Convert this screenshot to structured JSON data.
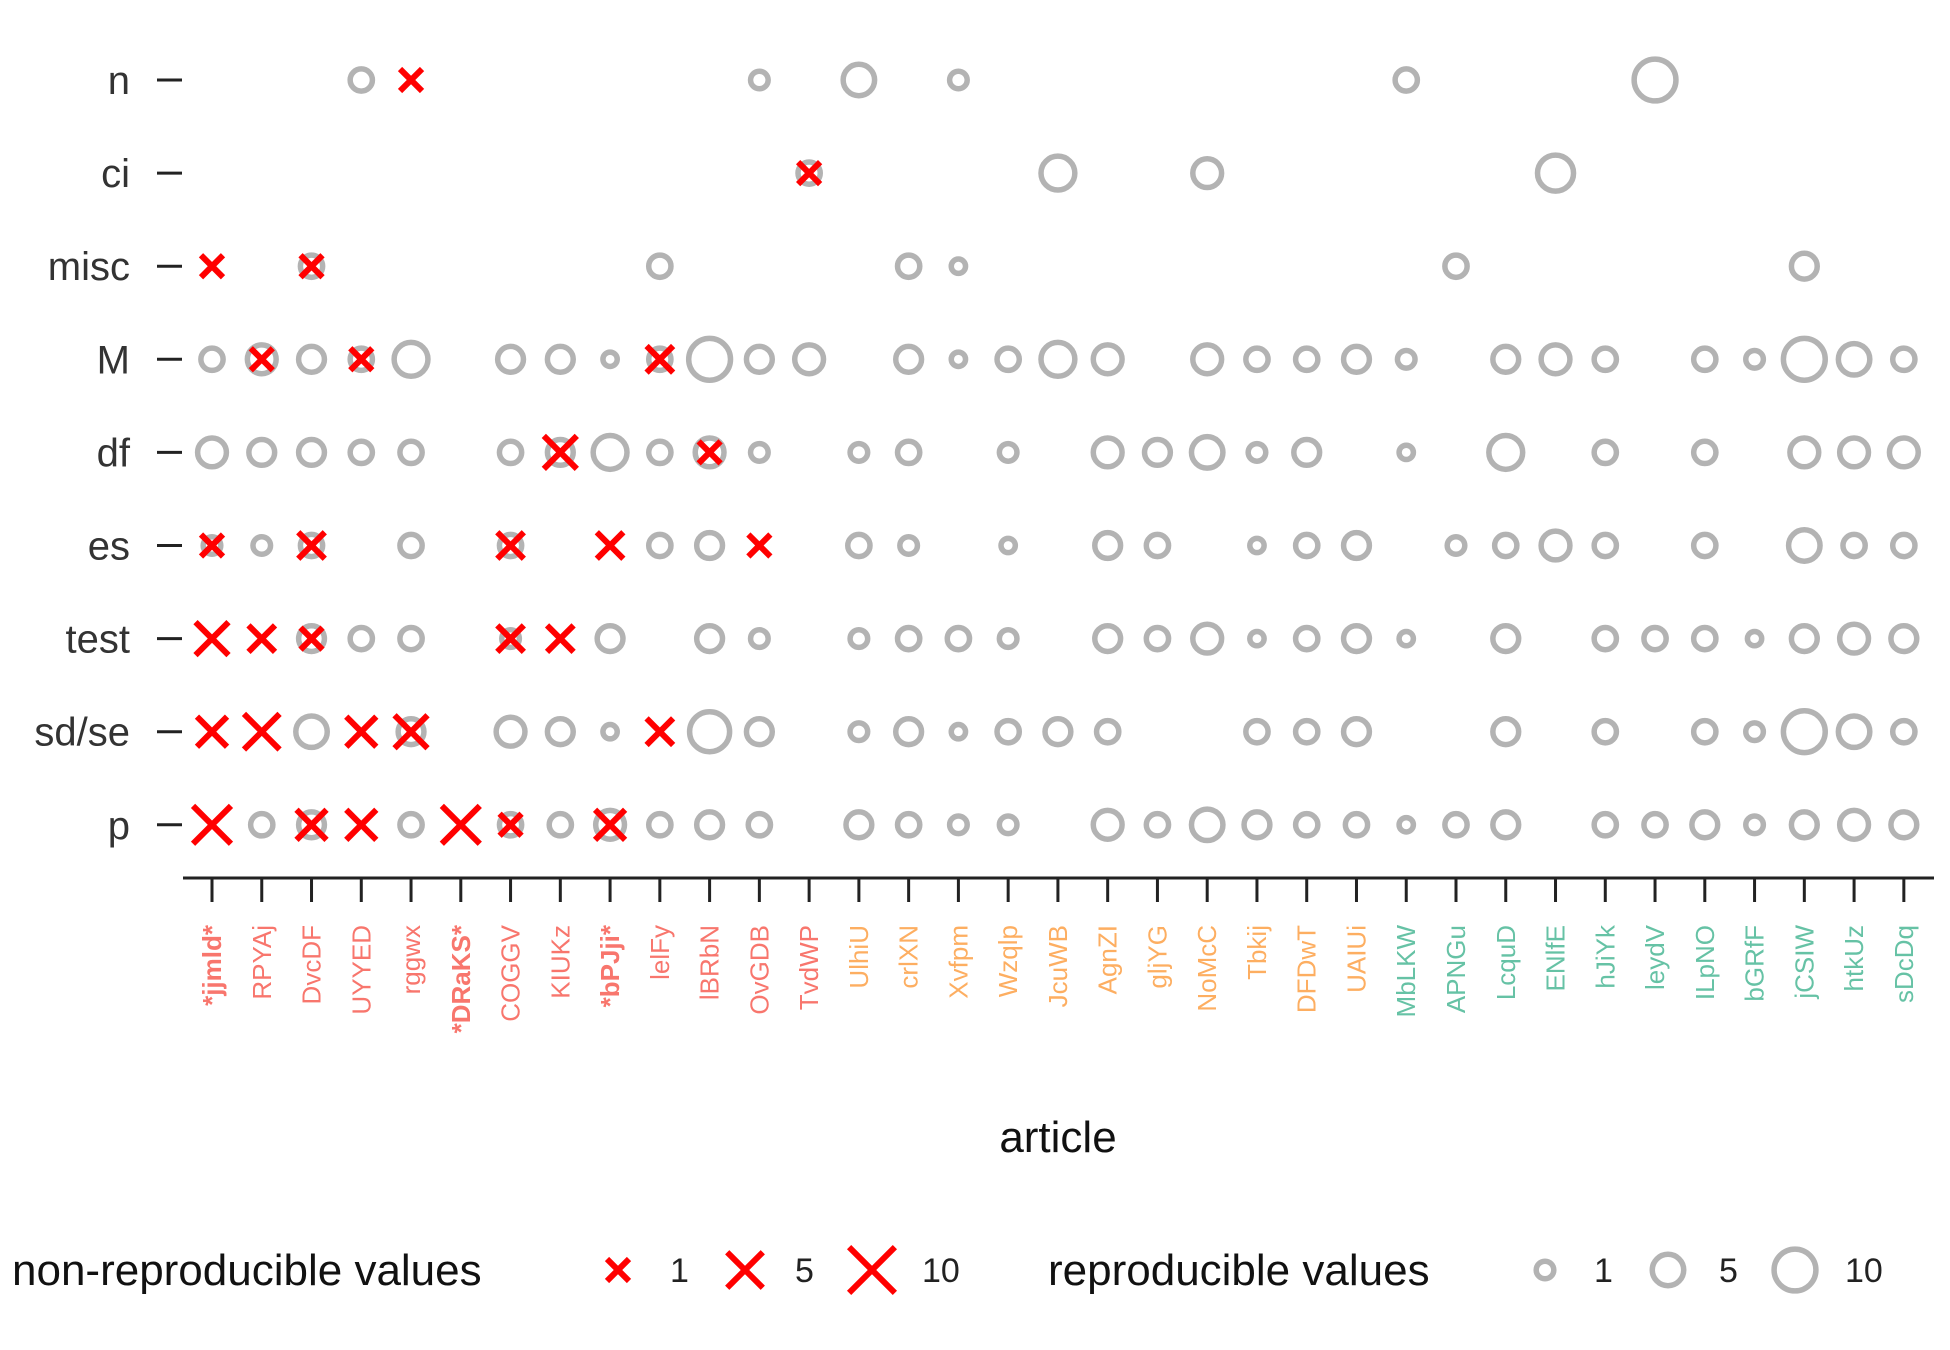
{
  "chart_data": {
    "type": "scatter",
    "xlabel": "article",
    "y_categories": [
      "n",
      "ci",
      "misc",
      "M",
      "df",
      "es",
      "test",
      "sd/se",
      "p"
    ],
    "articles": [
      {
        "label": "*jjmld*",
        "group": "red",
        "bold": true
      },
      {
        "label": "RPYAj",
        "group": "red",
        "bold": false
      },
      {
        "label": "DvcDF",
        "group": "red",
        "bold": false
      },
      {
        "label": "UYYED",
        "group": "red",
        "bold": false
      },
      {
        "label": "rggwx",
        "group": "red",
        "bold": false
      },
      {
        "label": "*DRaKS*",
        "group": "red",
        "bold": true
      },
      {
        "label": "COGGV",
        "group": "red",
        "bold": false
      },
      {
        "label": "KIUKz",
        "group": "red",
        "bold": false
      },
      {
        "label": "*bPJji*",
        "group": "red",
        "bold": true
      },
      {
        "label": "lelFy",
        "group": "red",
        "bold": false
      },
      {
        "label": "lBRbN",
        "group": "red",
        "bold": false
      },
      {
        "label": "OvGDB",
        "group": "red",
        "bold": false
      },
      {
        "label": "TvdWP",
        "group": "red",
        "bold": false
      },
      {
        "label": "UlhiU",
        "group": "orange",
        "bold": false
      },
      {
        "label": "crlXN",
        "group": "orange",
        "bold": false
      },
      {
        "label": "Xvfpm",
        "group": "orange",
        "bold": false
      },
      {
        "label": "Wzqlp",
        "group": "orange",
        "bold": false
      },
      {
        "label": "JcuWB",
        "group": "orange",
        "bold": false
      },
      {
        "label": "AgnZI",
        "group": "orange",
        "bold": false
      },
      {
        "label": "gljYG",
        "group": "orange",
        "bold": false
      },
      {
        "label": "NoMcC",
        "group": "orange",
        "bold": false
      },
      {
        "label": "Tbkij",
        "group": "orange",
        "bold": false
      },
      {
        "label": "DFDwT",
        "group": "orange",
        "bold": false
      },
      {
        "label": "UAIUi",
        "group": "orange",
        "bold": false
      },
      {
        "label": "MbLKW",
        "group": "teal",
        "bold": false
      },
      {
        "label": "APNGu",
        "group": "teal",
        "bold": false
      },
      {
        "label": "LcquD",
        "group": "teal",
        "bold": false
      },
      {
        "label": "ENlfE",
        "group": "teal",
        "bold": false
      },
      {
        "label": "hJiYk",
        "group": "teal",
        "bold": false
      },
      {
        "label": "leydV",
        "group": "teal",
        "bold": false
      },
      {
        "label": "ILpNO",
        "group": "teal",
        "bold": false
      },
      {
        "label": "bGRfF",
        "group": "teal",
        "bold": false
      },
      {
        "label": "jCSIW",
        "group": "teal",
        "bold": false
      },
      {
        "label": "htkUz",
        "group": "teal",
        "bold": false
      },
      {
        "label": "sDcDq",
        "group": "teal",
        "bold": false
      }
    ],
    "reproducible_values": [
      {
        "x": 3,
        "y": "n",
        "count": 2
      },
      {
        "x": 11,
        "y": "n",
        "count": 1
      },
      {
        "x": 13,
        "y": "n",
        "count": 5
      },
      {
        "x": 15,
        "y": "n",
        "count": 1
      },
      {
        "x": 24,
        "y": "n",
        "count": 2
      },
      {
        "x": 29,
        "y": "n",
        "count": 10
      },
      {
        "x": 12,
        "y": "ci",
        "count": 2
      },
      {
        "x": 17,
        "y": "ci",
        "count": 6
      },
      {
        "x": 20,
        "y": "ci",
        "count": 4
      },
      {
        "x": 27,
        "y": "ci",
        "count": 7
      },
      {
        "x": 2,
        "y": "misc",
        "count": 2
      },
      {
        "x": 9,
        "y": "misc",
        "count": 2
      },
      {
        "x": 14,
        "y": "misc",
        "count": 2
      },
      {
        "x": 15,
        "y": "misc",
        "count": 0.5
      },
      {
        "x": 25,
        "y": "misc",
        "count": 2
      },
      {
        "x": 32,
        "y": "misc",
        "count": 3
      },
      {
        "x": 0,
        "y": "M",
        "count": 2
      },
      {
        "x": 1,
        "y": "M",
        "count": 4
      },
      {
        "x": 2,
        "y": "M",
        "count": 3
      },
      {
        "x": 3,
        "y": "M",
        "count": 2
      },
      {
        "x": 4,
        "y": "M",
        "count": 6
      },
      {
        "x": 6,
        "y": "M",
        "count": 3
      },
      {
        "x": 7,
        "y": "M",
        "count": 3
      },
      {
        "x": 8,
        "y": "M",
        "count": 0.5
      },
      {
        "x": 9,
        "y": "M",
        "count": 2
      },
      {
        "x": 10,
        "y": "M",
        "count": 10
      },
      {
        "x": 11,
        "y": "M",
        "count": 3
      },
      {
        "x": 12,
        "y": "M",
        "count": 4
      },
      {
        "x": 14,
        "y": "M",
        "count": 3
      },
      {
        "x": 15,
        "y": "M",
        "count": 0.5
      },
      {
        "x": 16,
        "y": "M",
        "count": 2
      },
      {
        "x": 17,
        "y": "M",
        "count": 6
      },
      {
        "x": 18,
        "y": "M",
        "count": 4
      },
      {
        "x": 20,
        "y": "M",
        "count": 4
      },
      {
        "x": 21,
        "y": "M",
        "count": 2
      },
      {
        "x": 22,
        "y": "M",
        "count": 2
      },
      {
        "x": 23,
        "y": "M",
        "count": 3
      },
      {
        "x": 24,
        "y": "M",
        "count": 1
      },
      {
        "x": 26,
        "y": "M",
        "count": 3
      },
      {
        "x": 27,
        "y": "M",
        "count": 4
      },
      {
        "x": 28,
        "y": "M",
        "count": 2
      },
      {
        "x": 30,
        "y": "M",
        "count": 2
      },
      {
        "x": 31,
        "y": "M",
        "count": 1
      },
      {
        "x": 32,
        "y": "M",
        "count": 10
      },
      {
        "x": 33,
        "y": "M",
        "count": 5
      },
      {
        "x": 34,
        "y": "M",
        "count": 2
      },
      {
        "x": 0,
        "y": "df",
        "count": 4
      },
      {
        "x": 1,
        "y": "df",
        "count": 3
      },
      {
        "x": 2,
        "y": "df",
        "count": 3
      },
      {
        "x": 3,
        "y": "df",
        "count": 2
      },
      {
        "x": 4,
        "y": "df",
        "count": 2
      },
      {
        "x": 6,
        "y": "df",
        "count": 2
      },
      {
        "x": 7,
        "y": "df",
        "count": 3
      },
      {
        "x": 8,
        "y": "df",
        "count": 6
      },
      {
        "x": 9,
        "y": "df",
        "count": 2
      },
      {
        "x": 10,
        "y": "df",
        "count": 4
      },
      {
        "x": 11,
        "y": "df",
        "count": 1
      },
      {
        "x": 13,
        "y": "df",
        "count": 1
      },
      {
        "x": 14,
        "y": "df",
        "count": 2
      },
      {
        "x": 16,
        "y": "df",
        "count": 1
      },
      {
        "x": 18,
        "y": "df",
        "count": 4
      },
      {
        "x": 19,
        "y": "df",
        "count": 3
      },
      {
        "x": 20,
        "y": "df",
        "count": 5
      },
      {
        "x": 21,
        "y": "df",
        "count": 1
      },
      {
        "x": 22,
        "y": "df",
        "count": 3
      },
      {
        "x": 24,
        "y": "df",
        "count": 0.5
      },
      {
        "x": 26,
        "y": "df",
        "count": 6
      },
      {
        "x": 28,
        "y": "df",
        "count": 2
      },
      {
        "x": 30,
        "y": "df",
        "count": 2
      },
      {
        "x": 32,
        "y": "df",
        "count": 4
      },
      {
        "x": 33,
        "y": "df",
        "count": 4
      },
      {
        "x": 34,
        "y": "df",
        "count": 4
      },
      {
        "x": 0,
        "y": "es",
        "count": 1
      },
      {
        "x": 1,
        "y": "es",
        "count": 1
      },
      {
        "x": 2,
        "y": "es",
        "count": 2
      },
      {
        "x": 4,
        "y": "es",
        "count": 2
      },
      {
        "x": 6,
        "y": "es",
        "count": 2
      },
      {
        "x": 9,
        "y": "es",
        "count": 2
      },
      {
        "x": 10,
        "y": "es",
        "count": 3
      },
      {
        "x": 13,
        "y": "es",
        "count": 2
      },
      {
        "x": 14,
        "y": "es",
        "count": 1
      },
      {
        "x": 16,
        "y": "es",
        "count": 0.5
      },
      {
        "x": 18,
        "y": "es",
        "count": 3
      },
      {
        "x": 19,
        "y": "es",
        "count": 2
      },
      {
        "x": 21,
        "y": "es",
        "count": 0.5
      },
      {
        "x": 22,
        "y": "es",
        "count": 2
      },
      {
        "x": 23,
        "y": "es",
        "count": 3
      },
      {
        "x": 25,
        "y": "es",
        "count": 1
      },
      {
        "x": 26,
        "y": "es",
        "count": 2
      },
      {
        "x": 27,
        "y": "es",
        "count": 4
      },
      {
        "x": 28,
        "y": "es",
        "count": 2
      },
      {
        "x": 30,
        "y": "es",
        "count": 2
      },
      {
        "x": 32,
        "y": "es",
        "count": 5
      },
      {
        "x": 33,
        "y": "es",
        "count": 2
      },
      {
        "x": 34,
        "y": "es",
        "count": 2
      },
      {
        "x": 2,
        "y": "test",
        "count": 3
      },
      {
        "x": 3,
        "y": "test",
        "count": 2
      },
      {
        "x": 4,
        "y": "test",
        "count": 2
      },
      {
        "x": 6,
        "y": "test",
        "count": 1
      },
      {
        "x": 8,
        "y": "test",
        "count": 3
      },
      {
        "x": 10,
        "y": "test",
        "count": 3
      },
      {
        "x": 11,
        "y": "test",
        "count": 1
      },
      {
        "x": 13,
        "y": "test",
        "count": 1
      },
      {
        "x": 14,
        "y": "test",
        "count": 2
      },
      {
        "x": 15,
        "y": "test",
        "count": 2
      },
      {
        "x": 16,
        "y": "test",
        "count": 1
      },
      {
        "x": 18,
        "y": "test",
        "count": 3
      },
      {
        "x": 19,
        "y": "test",
        "count": 2
      },
      {
        "x": 20,
        "y": "test",
        "count": 4
      },
      {
        "x": 21,
        "y": "test",
        "count": 0.5
      },
      {
        "x": 22,
        "y": "test",
        "count": 2
      },
      {
        "x": 23,
        "y": "test",
        "count": 3
      },
      {
        "x": 24,
        "y": "test",
        "count": 0.5
      },
      {
        "x": 26,
        "y": "test",
        "count": 3
      },
      {
        "x": 28,
        "y": "test",
        "count": 2
      },
      {
        "x": 29,
        "y": "test",
        "count": 2
      },
      {
        "x": 30,
        "y": "test",
        "count": 2
      },
      {
        "x": 31,
        "y": "test",
        "count": 0.5
      },
      {
        "x": 32,
        "y": "test",
        "count": 3
      },
      {
        "x": 33,
        "y": "test",
        "count": 4
      },
      {
        "x": 34,
        "y": "test",
        "count": 3
      },
      {
        "x": 2,
        "y": "sd/se",
        "count": 5
      },
      {
        "x": 4,
        "y": "sd/se",
        "count": 3
      },
      {
        "x": 6,
        "y": "sd/se",
        "count": 4
      },
      {
        "x": 7,
        "y": "sd/se",
        "count": 3
      },
      {
        "x": 8,
        "y": "sd/se",
        "count": 0.5
      },
      {
        "x": 10,
        "y": "sd/se",
        "count": 9
      },
      {
        "x": 11,
        "y": "sd/se",
        "count": 3
      },
      {
        "x": 13,
        "y": "sd/se",
        "count": 1
      },
      {
        "x": 14,
        "y": "sd/se",
        "count": 3
      },
      {
        "x": 15,
        "y": "sd/se",
        "count": 0.5
      },
      {
        "x": 16,
        "y": "sd/se",
        "count": 2
      },
      {
        "x": 17,
        "y": "sd/se",
        "count": 3
      },
      {
        "x": 18,
        "y": "sd/se",
        "count": 2
      },
      {
        "x": 21,
        "y": "sd/se",
        "count": 2
      },
      {
        "x": 22,
        "y": "sd/se",
        "count": 2
      },
      {
        "x": 23,
        "y": "sd/se",
        "count": 3
      },
      {
        "x": 26,
        "y": "sd/se",
        "count": 3
      },
      {
        "x": 28,
        "y": "sd/se",
        "count": 2
      },
      {
        "x": 30,
        "y": "sd/se",
        "count": 2
      },
      {
        "x": 31,
        "y": "sd/se",
        "count": 1
      },
      {
        "x": 32,
        "y": "sd/se",
        "count": 10
      },
      {
        "x": 33,
        "y": "sd/se",
        "count": 5
      },
      {
        "x": 34,
        "y": "sd/se",
        "count": 2
      },
      {
        "x": 1,
        "y": "p",
        "count": 2
      },
      {
        "x": 2,
        "y": "p",
        "count": 3
      },
      {
        "x": 4,
        "y": "p",
        "count": 2
      },
      {
        "x": 6,
        "y": "p",
        "count": 2
      },
      {
        "x": 7,
        "y": "p",
        "count": 2
      },
      {
        "x": 8,
        "y": "p",
        "count": 4
      },
      {
        "x": 9,
        "y": "p",
        "count": 2
      },
      {
        "x": 10,
        "y": "p",
        "count": 3
      },
      {
        "x": 11,
        "y": "p",
        "count": 2
      },
      {
        "x": 13,
        "y": "p",
        "count": 3
      },
      {
        "x": 14,
        "y": "p",
        "count": 2
      },
      {
        "x": 15,
        "y": "p",
        "count": 1
      },
      {
        "x": 16,
        "y": "p",
        "count": 1
      },
      {
        "x": 18,
        "y": "p",
        "count": 4
      },
      {
        "x": 19,
        "y": "p",
        "count": 2
      },
      {
        "x": 20,
        "y": "p",
        "count": 5
      },
      {
        "x": 21,
        "y": "p",
        "count": 3
      },
      {
        "x": 22,
        "y": "p",
        "count": 2
      },
      {
        "x": 23,
        "y": "p",
        "count": 2
      },
      {
        "x": 24,
        "y": "p",
        "count": 0.5
      },
      {
        "x": 25,
        "y": "p",
        "count": 2
      },
      {
        "x": 26,
        "y": "p",
        "count": 3
      },
      {
        "x": 28,
        "y": "p",
        "count": 2
      },
      {
        "x": 29,
        "y": "p",
        "count": 2
      },
      {
        "x": 30,
        "y": "p",
        "count": 3
      },
      {
        "x": 31,
        "y": "p",
        "count": 1
      },
      {
        "x": 32,
        "y": "p",
        "count": 3
      },
      {
        "x": 33,
        "y": "p",
        "count": 4
      },
      {
        "x": 34,
        "y": "p",
        "count": 3
      }
    ],
    "nonreproducible_values": [
      {
        "x": 4,
        "y": "n",
        "count": 1
      },
      {
        "x": 12,
        "y": "ci",
        "count": 1
      },
      {
        "x": 0,
        "y": "misc",
        "count": 1
      },
      {
        "x": 2,
        "y": "misc",
        "count": 1
      },
      {
        "x": 1,
        "y": "M",
        "count": 1
      },
      {
        "x": 3,
        "y": "M",
        "count": 1
      },
      {
        "x": 9,
        "y": "M",
        "count": 2
      },
      {
        "x": 7,
        "y": "df",
        "count": 4
      },
      {
        "x": 10,
        "y": "df",
        "count": 1
      },
      {
        "x": 0,
        "y": "es",
        "count": 1
      },
      {
        "x": 2,
        "y": "es",
        "count": 2
      },
      {
        "x": 6,
        "y": "es",
        "count": 2
      },
      {
        "x": 8,
        "y": "es",
        "count": 2
      },
      {
        "x": 11,
        "y": "es",
        "count": 1
      },
      {
        "x": 0,
        "y": "test",
        "count": 4
      },
      {
        "x": 1,
        "y": "test",
        "count": 2
      },
      {
        "x": 2,
        "y": "test",
        "count": 1
      },
      {
        "x": 6,
        "y": "test",
        "count": 2
      },
      {
        "x": 7,
        "y": "test",
        "count": 2
      },
      {
        "x": 0,
        "y": "sd/se",
        "count": 3
      },
      {
        "x": 1,
        "y": "sd/se",
        "count": 5
      },
      {
        "x": 3,
        "y": "sd/se",
        "count": 3
      },
      {
        "x": 4,
        "y": "sd/se",
        "count": 4
      },
      {
        "x": 9,
        "y": "sd/se",
        "count": 2
      },
      {
        "x": 0,
        "y": "p",
        "count": 6
      },
      {
        "x": 2,
        "y": "p",
        "count": 3
      },
      {
        "x": 3,
        "y": "p",
        "count": 3
      },
      {
        "x": 5,
        "y": "p",
        "count": 6
      },
      {
        "x": 6,
        "y": "p",
        "count": 1
      },
      {
        "x": 8,
        "y": "p",
        "count": 3
      }
    ],
    "legend": {
      "nonrep_title": "non-reproducible values",
      "rep_title": "reproducible values",
      "sizes": [
        1,
        5,
        10
      ],
      "size_labels": [
        "1",
        "5",
        "10"
      ],
      "placement": "bottom"
    },
    "colors": {
      "red_group": "#F8766D",
      "orange_group": "#FDAE61",
      "teal_group": "#66C2A5",
      "cross": "#FF0000",
      "circle": "#B3B3B3",
      "axis": "#222222"
    }
  }
}
